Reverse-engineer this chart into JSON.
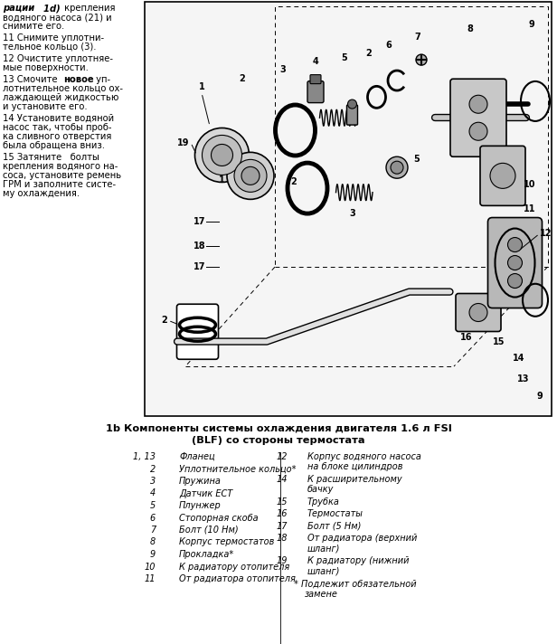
{
  "bg_color": "#ffffff",
  "fig_width": 6.16,
  "fig_height": 7.12,
  "font_size_main": 7.2,
  "font_size_caption": 8.2,
  "font_size_items": 7.0,
  "caption_line1": "1b Компоненты системы охлаждения двигателя 1.6 л FSI",
  "caption_line2": "(BLF) со стороны термостата",
  "left_col_items": [
    {
      "num": "1, 13",
      "text": "Фланец"
    },
    {
      "num": "2",
      "text": "Уплотнительное кольцо*"
    },
    {
      "num": "3",
      "text": "Пружина"
    },
    {
      "num": "4",
      "text": "Датчик ЕСТ"
    },
    {
      "num": "5",
      "text": "Плунжер"
    },
    {
      "num": "6",
      "text": "Стопорная скоба"
    },
    {
      "num": "7",
      "text": "Болт (10 Нм)"
    },
    {
      "num": "8",
      "text": "Корпус термостатов"
    },
    {
      "num": "9",
      "text": "Прокладка*"
    },
    {
      "num": "10",
      "text": "К радиатору отопителя"
    },
    {
      "num": "11",
      "text": "От радиатора отопителя"
    }
  ],
  "right_col_items": [
    {
      "num": "12",
      "text": "Корпус водяного насоса",
      "text2": "на блоке цилиндров"
    },
    {
      "num": "14",
      "text": "К расширительному",
      "text2": "бачку"
    },
    {
      "num": "15",
      "text": "Трубка",
      "text2": ""
    },
    {
      "num": "16",
      "text": "Термостаты",
      "text2": ""
    },
    {
      "num": "17",
      "text": "Болт (5 Нм)",
      "text2": ""
    },
    {
      "num": "18",
      "text": "От радиатора (верхний",
      "text2": "шланг)"
    },
    {
      "num": "19",
      "text": "К радиатору (нижний",
      "text2": "шланг)"
    }
  ],
  "footnote": "* Подлежит обязательной замене"
}
